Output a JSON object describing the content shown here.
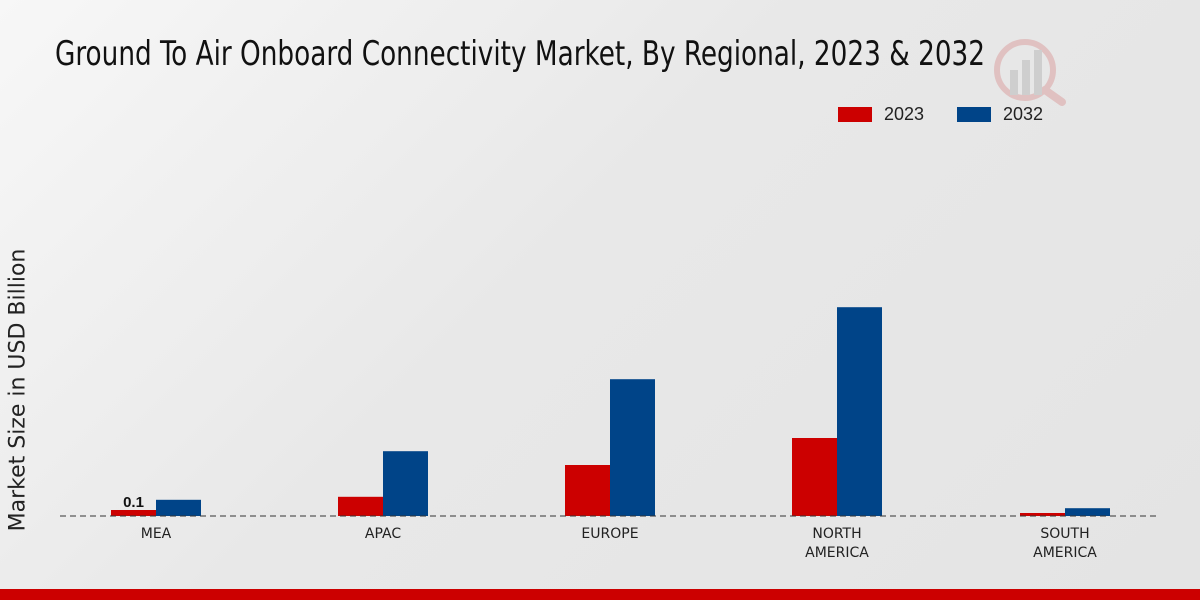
{
  "chart_data": {
    "type": "bar",
    "title": "Ground To Air Onboard Connectivity Market, By Regional, 2023 & 2032",
    "xlabel": "",
    "ylabel": "Market Size in USD Billion",
    "categories": [
      [
        "MEA"
      ],
      [
        "APAC"
      ],
      [
        "EUROPE"
      ],
      [
        "NORTH",
        "AMERICA"
      ],
      [
        "SOUTH",
        "AMERICA"
      ]
    ],
    "series": [
      {
        "name": "2023",
        "color": "#cc0000",
        "values": [
          0.1,
          0.32,
          0.85,
          1.3,
          0.05
        ]
      },
      {
        "name": "2032",
        "color": "#004488",
        "values": [
          0.27,
          1.08,
          2.28,
          3.48,
          0.13
        ]
      }
    ],
    "data_labels": [
      {
        "series": 0,
        "index": 0,
        "text": "0.1"
      }
    ],
    "ylim": [
      0,
      4
    ],
    "grid": false,
    "legend_position": "top-right"
  }
}
